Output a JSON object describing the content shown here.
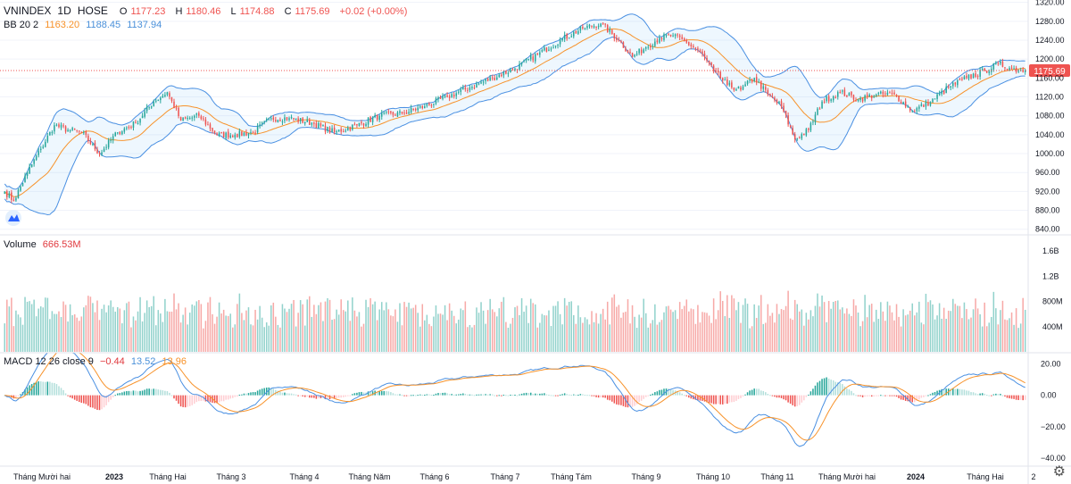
{
  "header": {
    "symbol": "VNINDEX",
    "interval": "1D",
    "exchange": "HOSE",
    "ohlc": {
      "o_label": "O",
      "o": "1177.23",
      "h_label": "H",
      "h": "1180.46",
      "l_label": "L",
      "l": "1174.88",
      "c_label": "C",
      "c": "1175.69",
      "change": "+0.02 (+0.00%)"
    },
    "bb": {
      "label": "BB 20 2",
      "basis": "1163.20",
      "upper": "1188.45",
      "lower": "1137.94"
    }
  },
  "volume_legend": {
    "label": "Volume",
    "value": "666.53M"
  },
  "macd_legend": {
    "label": "MACD 12 26 close 9",
    "hist": "−0.44",
    "macd": "13.52",
    "signal": "13.96"
  },
  "last_price_tag": "1175.69",
  "colors": {
    "up": "#26a69a",
    "down": "#ef5350",
    "bb_band": "#4a90e2",
    "bb_basis": "#f7922a",
    "macd_line": "#4a90e2",
    "signal_line": "#f7922a"
  },
  "icons": {
    "logo": "tradingview-logo-icon",
    "settings": "gear-icon"
  },
  "chart_data": {
    "type": "candlestick",
    "title": "",
    "price_axis": {
      "ticks": [
        "1320.00",
        "1280.00",
        "1240.00",
        "1200.00",
        "1160.00",
        "1120.00",
        "1080.00",
        "1040.00",
        "1000.00",
        "960.00",
        "920.00",
        "880.00",
        "840.00"
      ],
      "range": [
        830,
        1325
      ]
    },
    "volume_axis": {
      "ticks": [
        "1.6B",
        "1.2B",
        "800M",
        "400M"
      ],
      "range": [
        0,
        1800000000
      ]
    },
    "macd_axis": {
      "ticks": [
        "20.00",
        "0.00",
        "−20.00",
        "−40.00"
      ],
      "range": [
        -45,
        27
      ]
    },
    "x_ticks": [
      "Tháng Mười hai",
      "2023",
      "Tháng Hai",
      "Tháng 3",
      "Tháng 4",
      "Tháng Năm",
      "Tháng 6",
      "Tháng 7",
      "Tháng Tám",
      "Tháng 9",
      "Tháng 10",
      "Tháng 11",
      "Tháng Mười hai",
      "2024",
      "Tháng Hai",
      "2"
    ],
    "close_anchors": [
      [
        0,
        920
      ],
      [
        4,
        900
      ],
      [
        10,
        960
      ],
      [
        16,
        1010
      ],
      [
        22,
        1060
      ],
      [
        28,
        1050
      ],
      [
        34,
        1045
      ],
      [
        42,
        1000
      ],
      [
        50,
        1045
      ],
      [
        58,
        1065
      ],
      [
        66,
        1110
      ],
      [
        72,
        1130
      ],
      [
        78,
        1070
      ],
      [
        86,
        1080
      ],
      [
        94,
        1040
      ],
      [
        102,
        1040
      ],
      [
        110,
        1045
      ],
      [
        118,
        1075
      ],
      [
        126,
        1075
      ],
      [
        136,
        1065
      ],
      [
        146,
        1045
      ],
      [
        156,
        1060
      ],
      [
        166,
        1080
      ],
      [
        176,
        1085
      ],
      [
        186,
        1100
      ],
      [
        196,
        1120
      ],
      [
        206,
        1140
      ],
      [
        216,
        1160
      ],
      [
        226,
        1180
      ],
      [
        236,
        1210
      ],
      [
        246,
        1240
      ],
      [
        256,
        1265
      ],
      [
        264,
        1275
      ],
      [
        272,
        1240
      ],
      [
        278,
        1205
      ],
      [
        284,
        1225
      ],
      [
        290,
        1245
      ],
      [
        296,
        1250
      ],
      [
        302,
        1235
      ],
      [
        308,
        1215
      ],
      [
        314,
        1175
      ],
      [
        320,
        1145
      ],
      [
        326,
        1135
      ],
      [
        332,
        1160
      ],
      [
        338,
        1125
      ],
      [
        344,
        1100
      ],
      [
        350,
        1030
      ],
      [
        356,
        1050
      ],
      [
        362,
        1110
      ],
      [
        370,
        1130
      ],
      [
        378,
        1115
      ],
      [
        386,
        1125
      ],
      [
        394,
        1125
      ],
      [
        402,
        1090
      ],
      [
        410,
        1110
      ],
      [
        418,
        1140
      ],
      [
        426,
        1160
      ],
      [
        434,
        1175
      ],
      [
        440,
        1190
      ],
      [
        446,
        1180
      ],
      [
        452,
        1175.69
      ]
    ],
    "last_price": 1175.69
  }
}
